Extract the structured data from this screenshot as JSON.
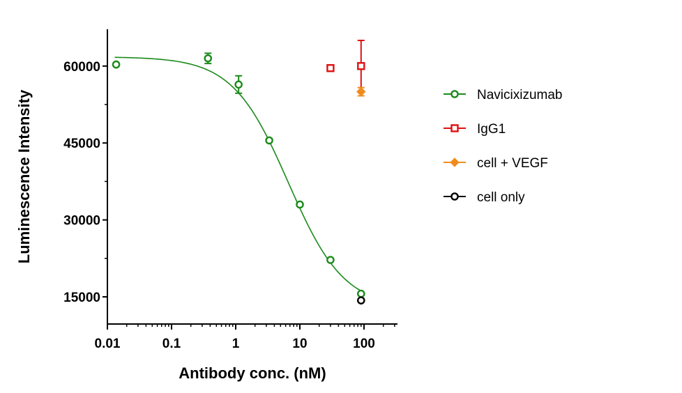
{
  "chart_data": {
    "type": "scatter",
    "xlabel": "Antibody conc. (nM)",
    "ylabel": "Luminescence Intensity",
    "xscale": "log",
    "xlim": [
      0.01,
      300
    ],
    "ylim": [
      10000,
      67500
    ],
    "x_ticks": [
      0.01,
      0.1,
      1,
      10,
      100
    ],
    "x_tick_labels": [
      "0.01",
      "0.1",
      "1",
      "10",
      "100"
    ],
    "y_ticks": [
      15000,
      30000,
      45000,
      60000
    ],
    "y_tick_labels": [
      "15000",
      "30000",
      "45000",
      "60000"
    ],
    "legend_position": "right",
    "series": [
      {
        "name": "Navicixizumab",
        "color": "#1a8a1a",
        "marker": "circle",
        "fit": {
          "model": "4PL",
          "top": 61800,
          "bottom": 12800,
          "ec50": 6.6,
          "hill": 1.0,
          "x_from": 0.013,
          "x_to": 88
        },
        "points": [
          {
            "x": 0.0137,
            "y": 60300
          },
          {
            "x": 0.37,
            "y": 61500,
            "err": 1000
          },
          {
            "x": 1.11,
            "y": 56400,
            "err": 1700
          },
          {
            "x": 3.33,
            "y": 45500
          },
          {
            "x": 10,
            "y": 33000
          },
          {
            "x": 30,
            "y": 22200
          },
          {
            "x": 90,
            "y": 15600
          }
        ]
      },
      {
        "name": "IgG1",
        "color": "#e01010",
        "marker": "square",
        "points": [
          {
            "x": 30,
            "y": 59600,
            "err": 600
          },
          {
            "x": 90,
            "y": 60000,
            "err": 5000
          }
        ]
      },
      {
        "name": "cell + VEGF",
        "color": "#f08c1e",
        "marker": "diamond",
        "points": [
          {
            "x": 90,
            "y": 55000,
            "err": 800
          }
        ]
      },
      {
        "name": "cell only",
        "color": "#000000",
        "marker": "circle",
        "points": [
          {
            "x": 90,
            "y": 14300
          }
        ]
      }
    ]
  }
}
